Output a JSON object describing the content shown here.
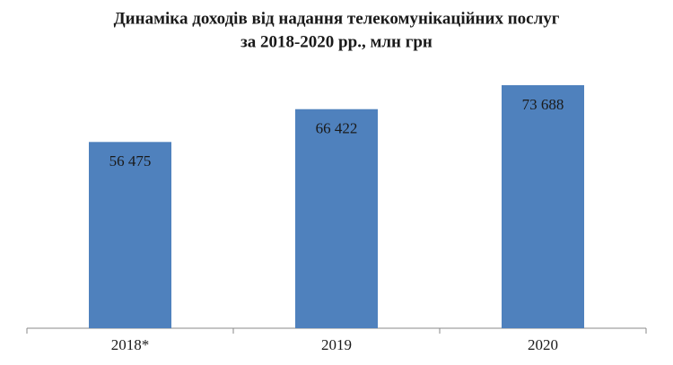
{
  "chart_data": {
    "type": "bar",
    "title": [
      "Динаміка доходів від надання телекомунікаційних послуг",
      "за 2018-2020 рр., млн грн"
    ],
    "categories": [
      "2018*",
      "2019",
      "2020"
    ],
    "values": [
      56475,
      66422,
      73688
    ],
    "value_labels": [
      "56 475",
      "66 422",
      "73 688"
    ],
    "color": "#4f81bd"
  }
}
